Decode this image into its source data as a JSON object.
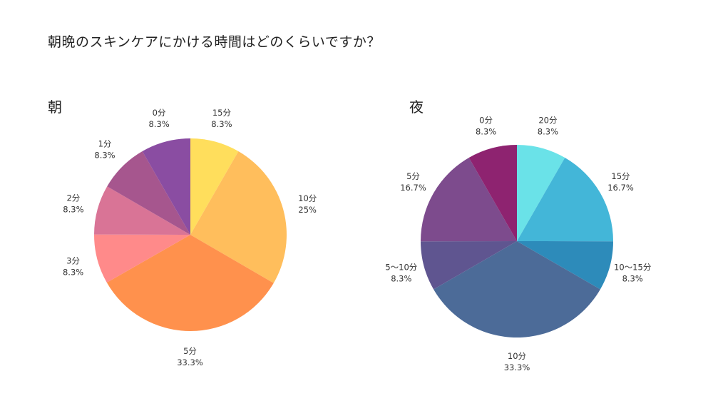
{
  "title": "朝晩のスキンケアにかける時間はどのくらいですか？",
  "chart_data": [
    {
      "type": "pie",
      "title": "朝",
      "start_angle_deg": 0,
      "direction": "clockwise",
      "slices": [
        {
          "label": "15分",
          "value": 8.3,
          "display": "8.3%",
          "color": "#FFDE5C"
        },
        {
          "label": "10分",
          "value": 25,
          "display": "25%",
          "color": "#FFBE5C"
        },
        {
          "label": "5分",
          "value": 33.3,
          "display": "33.3%",
          "color": "#FF914D"
        },
        {
          "label": "3分",
          "value": 8.3,
          "display": "8.3%",
          "color": "#FF8A8A"
        },
        {
          "label": "2分",
          "value": 8.3,
          "display": "8.3%",
          "color": "#D97496"
        },
        {
          "label": "1分",
          "value": 8.3,
          "display": "8.3%",
          "color": "#A6568E"
        },
        {
          "label": "0分",
          "value": 8.3,
          "display": "8.3%",
          "color": "#8A4DA2"
        }
      ]
    },
    {
      "type": "pie",
      "title": "夜",
      "start_angle_deg": 0,
      "direction": "clockwise",
      "slices": [
        {
          "label": "20分",
          "value": 8.3,
          "display": "8.3%",
          "color": "#6AE2E8"
        },
        {
          "label": "15分",
          "value": 16.7,
          "display": "16.7%",
          "color": "#43B6D8"
        },
        {
          "label": "10〜15分",
          "value": 8.3,
          "display": "8.3%",
          "color": "#2D8BBA"
        },
        {
          "label": "10分",
          "value": 33.3,
          "display": "33.3%",
          "color": "#4C6B98"
        },
        {
          "label": "5〜10分",
          "value": 8.3,
          "display": "8.3%",
          "color": "#5F5590"
        },
        {
          "label": "5分",
          "value": 16.7,
          "display": "16.7%",
          "color": "#7D4B8D"
        },
        {
          "label": "0分",
          "value": 8.3,
          "display": "8.3%",
          "color": "#8E2370"
        }
      ]
    }
  ]
}
